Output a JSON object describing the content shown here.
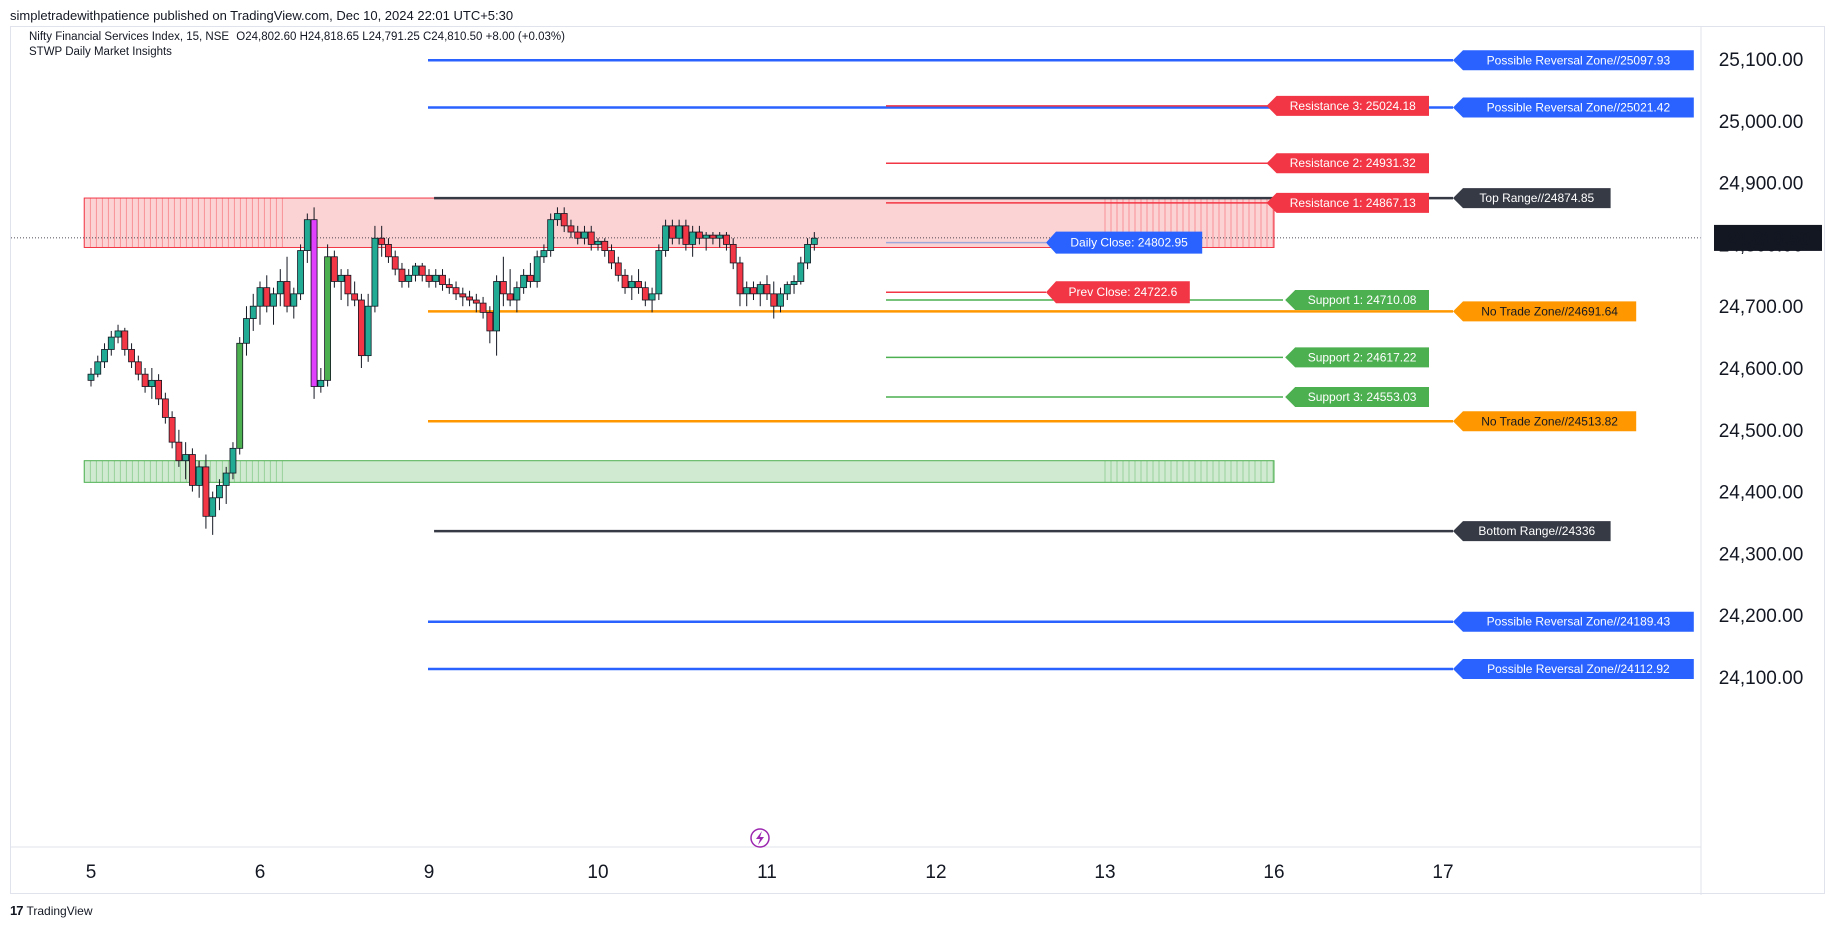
{
  "publish_line": "simpletradewithpatience published on TradingView.com, Dec 10, 2024 22:01 UTC+5:30",
  "header": {
    "symbol": "Nifty Financial Services Index, 15, NSE",
    "ohlc": "O24,802.60  H24,818.65  L24,791.25  C24,810.50  +8.00 (+0.03%)",
    "indicator": "STWP Daily Market Insights"
  },
  "footer": {
    "brand": "TradingView",
    "logo": "17"
  },
  "colors": {
    "up": "#22ab94",
    "down": "#f23645",
    "green_up": "#4caf50",
    "magenta": "#e040fb",
    "blue": "#2962ff",
    "red": "#f23645",
    "green": "#4caf50",
    "orange": "#ff9800",
    "dark": "#363a45",
    "resistance_zone": "#fccbcd",
    "support_zone": "#c8e6c9"
  },
  "chart_data": {
    "type": "candlestick",
    "price_axis": {
      "ticks": [
        "25,100.00",
        "25,000.00",
        "24,900.00",
        "24,800.00",
        "24,700.00",
        "24,600.00",
        "24,500.00",
        "24,400.00",
        "24,300.00",
        "24,200.00",
        "24,100.00"
      ],
      "tick_values": [
        25100,
        25000,
        24900,
        24800,
        24700,
        24600,
        24500,
        24400,
        24300,
        24200,
        24100
      ],
      "current": "24,810.50",
      "current_value": 24810.5,
      "range": [
        24030,
        25160
      ]
    },
    "time_axis": {
      "labels": [
        "5",
        "6",
        "9",
        "10",
        "11",
        "12",
        "13",
        "16",
        "17"
      ],
      "positions": [
        0,
        1,
        2,
        3,
        4,
        5,
        6,
        7,
        8
      ]
    },
    "candles": [
      [
        0.0,
        24580,
        24600,
        24570,
        24590
      ],
      [
        0.04,
        24590,
        24620,
        24585,
        24610
      ],
      [
        0.08,
        24610,
        24640,
        24600,
        24630
      ],
      [
        0.12,
        24630,
        24660,
        24620,
        24650
      ],
      [
        0.16,
        24650,
        24670,
        24640,
        24660
      ],
      [
        0.2,
        24660,
        24665,
        24620,
        24630
      ],
      [
        0.24,
        24630,
        24640,
        24600,
        24610
      ],
      [
        0.28,
        24610,
        24620,
        24580,
        24590
      ],
      [
        0.32,
        24590,
        24600,
        24560,
        24570
      ],
      [
        0.36,
        24570,
        24600,
        24550,
        24580
      ],
      [
        0.4,
        24580,
        24590,
        24540,
        24550
      ],
      [
        0.44,
        24550,
        24560,
        24510,
        24520
      ],
      [
        0.48,
        24520,
        24530,
        24470,
        24480
      ],
      [
        0.52,
        24480,
        24500,
        24440,
        24450
      ],
      [
        0.56,
        24450,
        24480,
        24420,
        24460
      ],
      [
        0.6,
        24460,
        24470,
        24400,
        24410
      ],
      [
        0.64,
        24410,
        24450,
        24390,
        24440
      ],
      [
        0.68,
        24440,
        24460,
        24340,
        24360
      ],
      [
        0.72,
        24360,
        24400,
        24330,
        24390
      ],
      [
        0.76,
        24390,
        24420,
        24370,
        24410
      ],
      [
        0.8,
        24410,
        24440,
        24380,
        24430
      ],
      [
        0.84,
        24430,
        24480,
        24420,
        24470
      ],
      [
        0.88,
        24470,
        24650,
        24460,
        24640
      ],
      [
        0.92,
        24640,
        24700,
        24620,
        24680
      ],
      [
        0.96,
        24680,
        24720,
        24660,
        24700
      ],
      [
        1.0,
        24700,
        24740,
        24670,
        24730
      ],
      [
        1.04,
        24730,
        24750,
        24690,
        24700
      ],
      [
        1.08,
        24700,
        24730,
        24670,
        24720
      ],
      [
        1.12,
        24720,
        24760,
        24700,
        24740
      ],
      [
        1.16,
        24740,
        24780,
        24690,
        24700
      ],
      [
        1.2,
        24700,
        24730,
        24680,
        24720
      ],
      [
        1.24,
        24720,
        24800,
        24710,
        24790
      ],
      [
        1.28,
        24790,
        24850,
        24770,
        24840
      ],
      [
        1.32,
        24840,
        24860,
        24550,
        24570
      ],
      [
        1.36,
        24570,
        24600,
        24560,
        24580
      ],
      [
        1.4,
        24580,
        24800,
        24570,
        24780
      ],
      [
        1.44,
        24780,
        24790,
        24730,
        24740
      ],
      [
        1.48,
        24740,
        24760,
        24710,
        24750
      ],
      [
        1.52,
        24750,
        24760,
        24700,
        24720
      ],
      [
        1.56,
        24720,
        24740,
        24700,
        24710
      ],
      [
        1.6,
        24710,
        24720,
        24600,
        24620
      ],
      [
        1.64,
        24620,
        24720,
        24610,
        24700
      ],
      [
        1.68,
        24700,
        24830,
        24690,
        24810
      ],
      [
        1.72,
        24810,
        24830,
        24780,
        24800
      ],
      [
        1.76,
        24800,
        24810,
        24770,
        24780
      ],
      [
        1.8,
        24780,
        24790,
        24750,
        24760
      ],
      [
        1.84,
        24760,
        24770,
        24730,
        24740
      ],
      [
        1.88,
        24740,
        24760,
        24730,
        24750
      ],
      [
        1.92,
        24750,
        24770,
        24740,
        24765
      ],
      [
        1.96,
        24765,
        24770,
        24740,
        24750
      ],
      [
        2.0,
        24750,
        24760,
        24730,
        24740
      ],
      [
        2.04,
        24740,
        24760,
        24730,
        24750
      ],
      [
        2.08,
        24750,
        24760,
        24725,
        24735
      ],
      [
        2.12,
        24735,
        24745,
        24720,
        24730
      ],
      [
        2.16,
        24730,
        24740,
        24710,
        24720
      ],
      [
        2.2,
        24720,
        24730,
        24700,
        24715
      ],
      [
        2.24,
        24715,
        24725,
        24700,
        24710
      ],
      [
        2.28,
        24710,
        24720,
        24690,
        24705
      ],
      [
        2.32,
        24705,
        24715,
        24680,
        24690
      ],
      [
        2.36,
        24690,
        24700,
        24640,
        24660
      ],
      [
        2.4,
        24660,
        24750,
        24620,
        24740
      ],
      [
        2.44,
        24740,
        24780,
        24700,
        24720
      ],
      [
        2.48,
        24720,
        24760,
        24700,
        24710
      ],
      [
        2.52,
        24710,
        24740,
        24690,
        24730
      ],
      [
        2.56,
        24730,
        24760,
        24720,
        24750
      ],
      [
        2.6,
        24750,
        24770,
        24730,
        24740
      ],
      [
        2.64,
        24740,
        24790,
        24730,
        24780
      ],
      [
        2.68,
        24780,
        24800,
        24770,
        24790
      ],
      [
        2.72,
        24790,
        24850,
        24780,
        24840
      ],
      [
        2.76,
        24840,
        24860,
        24830,
        24850
      ],
      [
        2.8,
        24850,
        24860,
        24820,
        24830
      ],
      [
        2.84,
        24830,
        24840,
        24810,
        24820
      ],
      [
        2.88,
        24820,
        24830,
        24800,
        24810
      ],
      [
        2.92,
        24810,
        24830,
        24800,
        24820
      ],
      [
        2.96,
        24820,
        24830,
        24790,
        24800
      ],
      [
        3.0,
        24800,
        24810,
        24790,
        24805
      ],
      [
        3.04,
        24805,
        24810,
        24780,
        24790
      ],
      [
        3.08,
        24790,
        24800,
        24760,
        24770
      ],
      [
        3.12,
        24770,
        24780,
        24740,
        24750
      ],
      [
        3.16,
        24750,
        24760,
        24720,
        24730
      ],
      [
        3.2,
        24730,
        24750,
        24710,
        24740
      ],
      [
        3.24,
        24740,
        24760,
        24720,
        24730
      ],
      [
        3.28,
        24730,
        24740,
        24700,
        24710
      ],
      [
        3.32,
        24710,
        24730,
        24690,
        24720
      ],
      [
        3.36,
        24720,
        24800,
        24710,
        24790
      ],
      [
        3.4,
        24790,
        24840,
        24780,
        24830
      ],
      [
        3.44,
        24830,
        24840,
        24800,
        24810
      ],
      [
        3.48,
        24810,
        24840,
        24800,
        24830
      ],
      [
        3.52,
        24830,
        24840,
        24790,
        24800
      ],
      [
        3.56,
        24800,
        24830,
        24780,
        24820
      ],
      [
        3.6,
        24820,
        24830,
        24800,
        24810
      ],
      [
        3.64,
        24810,
        24820,
        24790,
        24815
      ],
      [
        3.68,
        24815,
        24820,
        24800,
        24810
      ],
      [
        3.72,
        24810,
        24820,
        24795,
        24815
      ],
      [
        3.76,
        24815,
        24820,
        24790,
        24800
      ],
      [
        3.8,
        24800,
        24810,
        24760,
        24770
      ],
      [
        3.84,
        24770,
        24780,
        24700,
        24720
      ],
      [
        3.88,
        24720,
        24740,
        24700,
        24730
      ],
      [
        3.92,
        24730,
        24740,
        24710,
        24720
      ],
      [
        3.96,
        24720,
        24740,
        24700,
        24735
      ],
      [
        4.0,
        24735,
        24750,
        24710,
        24720
      ],
      [
        4.04,
        24720,
        24740,
        24680,
        24700
      ],
      [
        4.08,
        24700,
        24730,
        24690,
        24720
      ],
      [
        4.12,
        24720,
        24740,
        24710,
        24735
      ],
      [
        4.16,
        24735,
        24750,
        24720,
        24740
      ],
      [
        4.2,
        24740,
        24780,
        24735,
        24770
      ],
      [
        4.24,
        24770,
        24810,
        24760,
        24800
      ],
      [
        4.28,
        24800,
        24820,
        24790,
        24810
      ]
    ],
    "levels": [
      {
        "label": "Possible Reversal Zone//25097.93",
        "value": 25097.93,
        "color": "blue",
        "x_start": 2.0,
        "x_end": 7.0
      },
      {
        "label": "Possible Reversal Zone//25021.42",
        "value": 25021.42,
        "color": "blue",
        "x_start": 2.0,
        "x_end": 7.0
      },
      {
        "label": "Top Range//24874.85",
        "value": 24874.85,
        "color": "dark",
        "x_start": 2.03,
        "x_end": 7.0
      },
      {
        "label": "No Trade Zone//24691.64",
        "value": 24691.64,
        "color": "orange",
        "x_start": 2.0,
        "x_end": 7.0
      },
      {
        "label": "No Trade Zone//24513.82",
        "value": 24513.82,
        "color": "orange",
        "x_start": 2.0,
        "x_end": 7.0
      },
      {
        "label": "Bottom Range//24336",
        "value": 24336,
        "color": "dark",
        "x_start": 2.03,
        "x_end": 7.0
      },
      {
        "label": "Possible Reversal Zone//24189.43",
        "value": 24189.43,
        "color": "blue",
        "x_start": 2.0,
        "x_end": 7.0
      },
      {
        "label": "Possible Reversal Zone//24112.92",
        "value": 24112.92,
        "color": "blue",
        "x_start": 2.0,
        "x_end": 7.0
      }
    ],
    "sr_levels": [
      {
        "label": "Resistance 3: 25024.18",
        "value": 25024.18,
        "color": "red"
      },
      {
        "label": "Resistance 2: 24931.32",
        "value": 24931.32,
        "color": "red"
      },
      {
        "label": "Resistance 1: 24867.13",
        "value": 24867.13,
        "color": "red"
      },
      {
        "label": "Support 1: 24710.08",
        "value": 24710.08,
        "color": "green"
      },
      {
        "label": "Support 2: 24617.22",
        "value": 24617.22,
        "color": "green"
      },
      {
        "label": "Support 3: 24553.03",
        "value": 24553.03,
        "color": "green"
      }
    ],
    "daily_close": {
      "label": "Daily Close: 24802.95",
      "value": 24802.95
    },
    "prev_close": {
      "label": "Prev Close: 24722.6",
      "value": 24722.6
    },
    "zones": [
      {
        "name": "resistance",
        "top": 24875,
        "bottom": 24795,
        "x_start": -0.04,
        "x_end": 7.0
      },
      {
        "name": "support",
        "top": 24450,
        "bottom": 24415,
        "x_start": -0.04,
        "x_end": 7.0
      }
    ]
  }
}
